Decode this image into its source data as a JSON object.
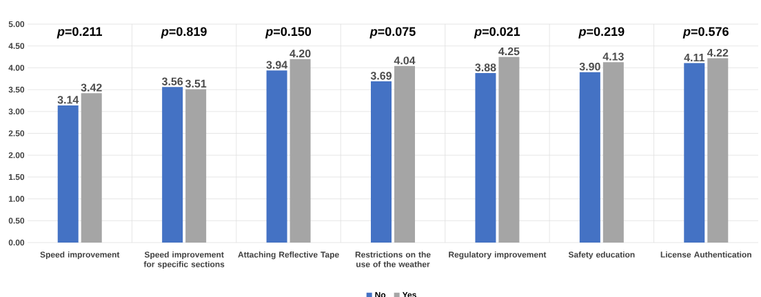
{
  "chart_data": {
    "type": "bar",
    "categories": [
      "Speed improvement",
      "Speed improvement for specific sections",
      "Attaching Reflective Tape",
      "Restrictions on the use of the weather",
      "Regulatory improvement",
      "Safety education",
      "License Authentication"
    ],
    "series": [
      {
        "name": "No",
        "color": "#4472c4",
        "values": [
          3.14,
          3.56,
          3.94,
          3.69,
          3.88,
          3.9,
          4.11
        ],
        "value_labels": [
          "3.14",
          "3.56",
          "3.94",
          "3.69",
          "3.88",
          "3.90",
          "4.11"
        ]
      },
      {
        "name": "Yes",
        "color": "#a5a5a5",
        "values": [
          3.42,
          3.51,
          4.2,
          4.04,
          4.25,
          4.13,
          4.22
        ],
        "value_labels": [
          "3.42",
          "3.51",
          "4.20",
          "4.04",
          "4.25",
          "4.13",
          "4.22"
        ]
      }
    ],
    "ylim": [
      0,
      5
    ],
    "yticks": [
      {
        "value": 0,
        "label": "0.00"
      },
      {
        "value": 0.5,
        "label": "0.50"
      },
      {
        "value": 1,
        "label": "1.00"
      },
      {
        "value": 1.5,
        "label": "1.50"
      },
      {
        "value": 2,
        "label": "2.00"
      },
      {
        "value": 2.5,
        "label": "2.50"
      },
      {
        "value": 3,
        "label": "3.00"
      },
      {
        "value": 3.5,
        "label": "3.50"
      },
      {
        "value": 4,
        "label": "4.00"
      },
      {
        "value": 4.5,
        "label": "4.50"
      },
      {
        "value": 5,
        "label": "5.00"
      }
    ],
    "grid": true,
    "legend": "bottom",
    "annotations": [
      "*p*=0.211",
      "*p*=0.819",
      "*p*=0.150",
      "*p*=0.075",
      "*p*=0.021",
      "*p*=0.219",
      "*p*=0.576"
    ]
  }
}
